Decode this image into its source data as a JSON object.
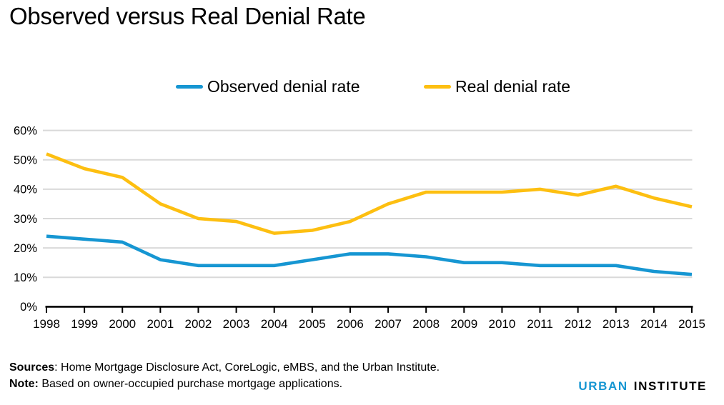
{
  "title": "Observed versus Real Denial Rate",
  "legend": [
    {
      "label": "Observed denial rate",
      "color": "#1696d2"
    },
    {
      "label": "Real denial rate",
      "color": "#fdbf11"
    }
  ],
  "chart_data": {
    "type": "line",
    "x": [
      "1998",
      "1999",
      "2000",
      "2001",
      "2002",
      "2003",
      "2004",
      "2005",
      "2006",
      "2007",
      "2008",
      "2009",
      "2010",
      "2011",
      "2012",
      "2013",
      "2014",
      "2015"
    ],
    "series": [
      {
        "name": "Observed denial rate",
        "color": "#1696d2",
        "values": [
          24,
          23,
          22,
          16,
          14,
          14,
          14,
          16,
          18,
          18,
          17,
          15,
          15,
          14,
          14,
          14,
          12,
          11
        ]
      },
      {
        "name": "Real denial rate",
        "color": "#fdbf11",
        "values": [
          52,
          47,
          44,
          35,
          30,
          29,
          25,
          26,
          29,
          35,
          39,
          39,
          39,
          40,
          38,
          41,
          37,
          34
        ]
      }
    ],
    "title": "Observed versus Real Denial Rate",
    "xlabel": "",
    "ylabel": "",
    "ylim": [
      0,
      60
    ],
    "ytick_step": 10,
    "ytick_labels": [
      "0%",
      "10%",
      "20%",
      "30%",
      "40%",
      "50%",
      "60%"
    ],
    "grid": "horizontal",
    "legend_position": "top-center"
  },
  "colors": {
    "observed_line": "#1696d2",
    "real_line": "#fdbf11",
    "gridline": "#d9d9d9",
    "axis": "#000000",
    "text": "#000000"
  },
  "footer": {
    "sources_label": "Sources",
    "sources_text": ": Home Mortgage Disclosure Act, CoreLogic, eMBS, and the Urban Institute.",
    "note_label": "Note:",
    "note_text": " Based on owner-occupied purchase mortgage applications."
  },
  "logo": {
    "part1": "URBAN",
    "part2": "INSTITUTE",
    "part1_color": "#1696d2"
  }
}
